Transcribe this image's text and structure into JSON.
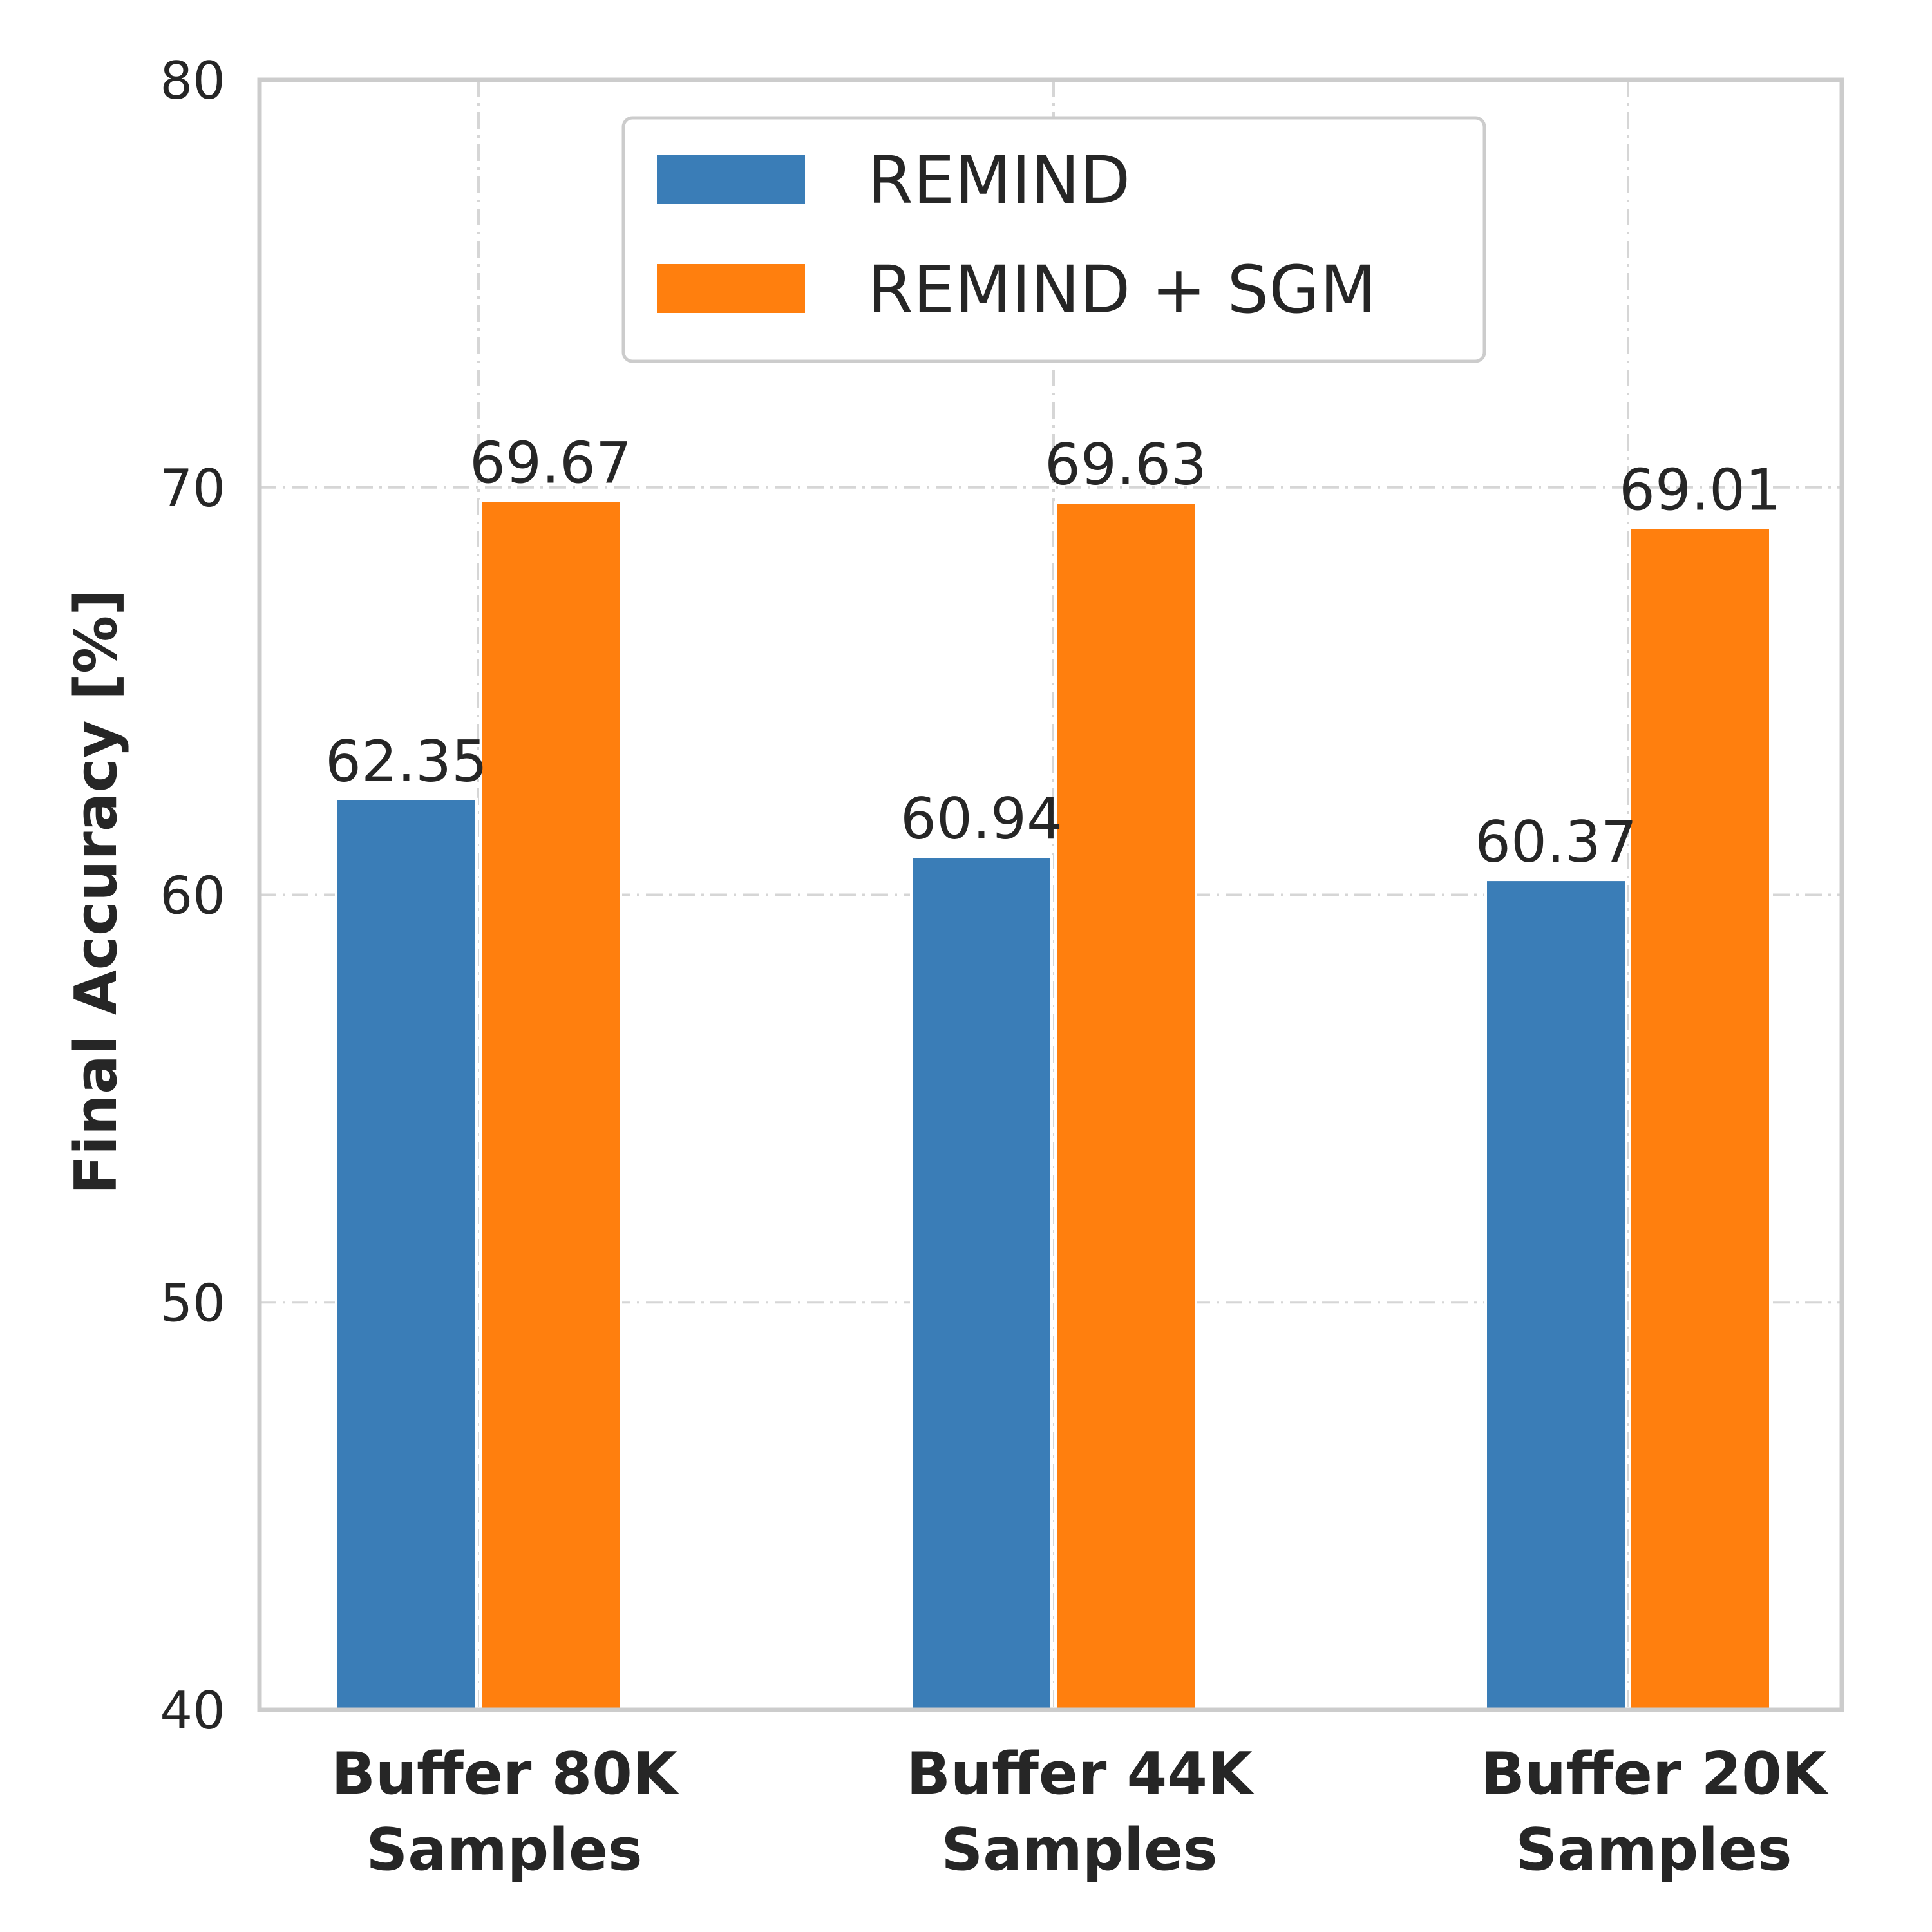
{
  "chart_data": {
    "type": "bar",
    "categories": [
      [
        "Buffer 80K",
        "Samples"
      ],
      [
        "Buffer 44K",
        "Samples"
      ],
      [
        "Buffer 20K",
        "Samples"
      ]
    ],
    "series": [
      {
        "name": "REMIND",
        "color": "#3a7db7",
        "values": [
          62.35,
          60.94,
          60.37
        ],
        "labels": [
          "62.35",
          "60.94",
          "60.37"
        ]
      },
      {
        "name": "REMIND + SGM",
        "color": "#ff7f0e",
        "values": [
          69.67,
          69.63,
          69.01
        ],
        "labels": [
          "69.67",
          "69.63",
          "69.01"
        ]
      }
    ],
    "title": "",
    "xlabel": "",
    "ylabel": "Final Accuracy [%]",
    "ylim": [
      40,
      80
    ],
    "yticks": [
      40,
      50,
      60,
      70,
      80
    ],
    "ytick_labels": [
      "40",
      "50",
      "60",
      "70",
      "80"
    ],
    "grid": true,
    "legend_position": "top-center"
  }
}
